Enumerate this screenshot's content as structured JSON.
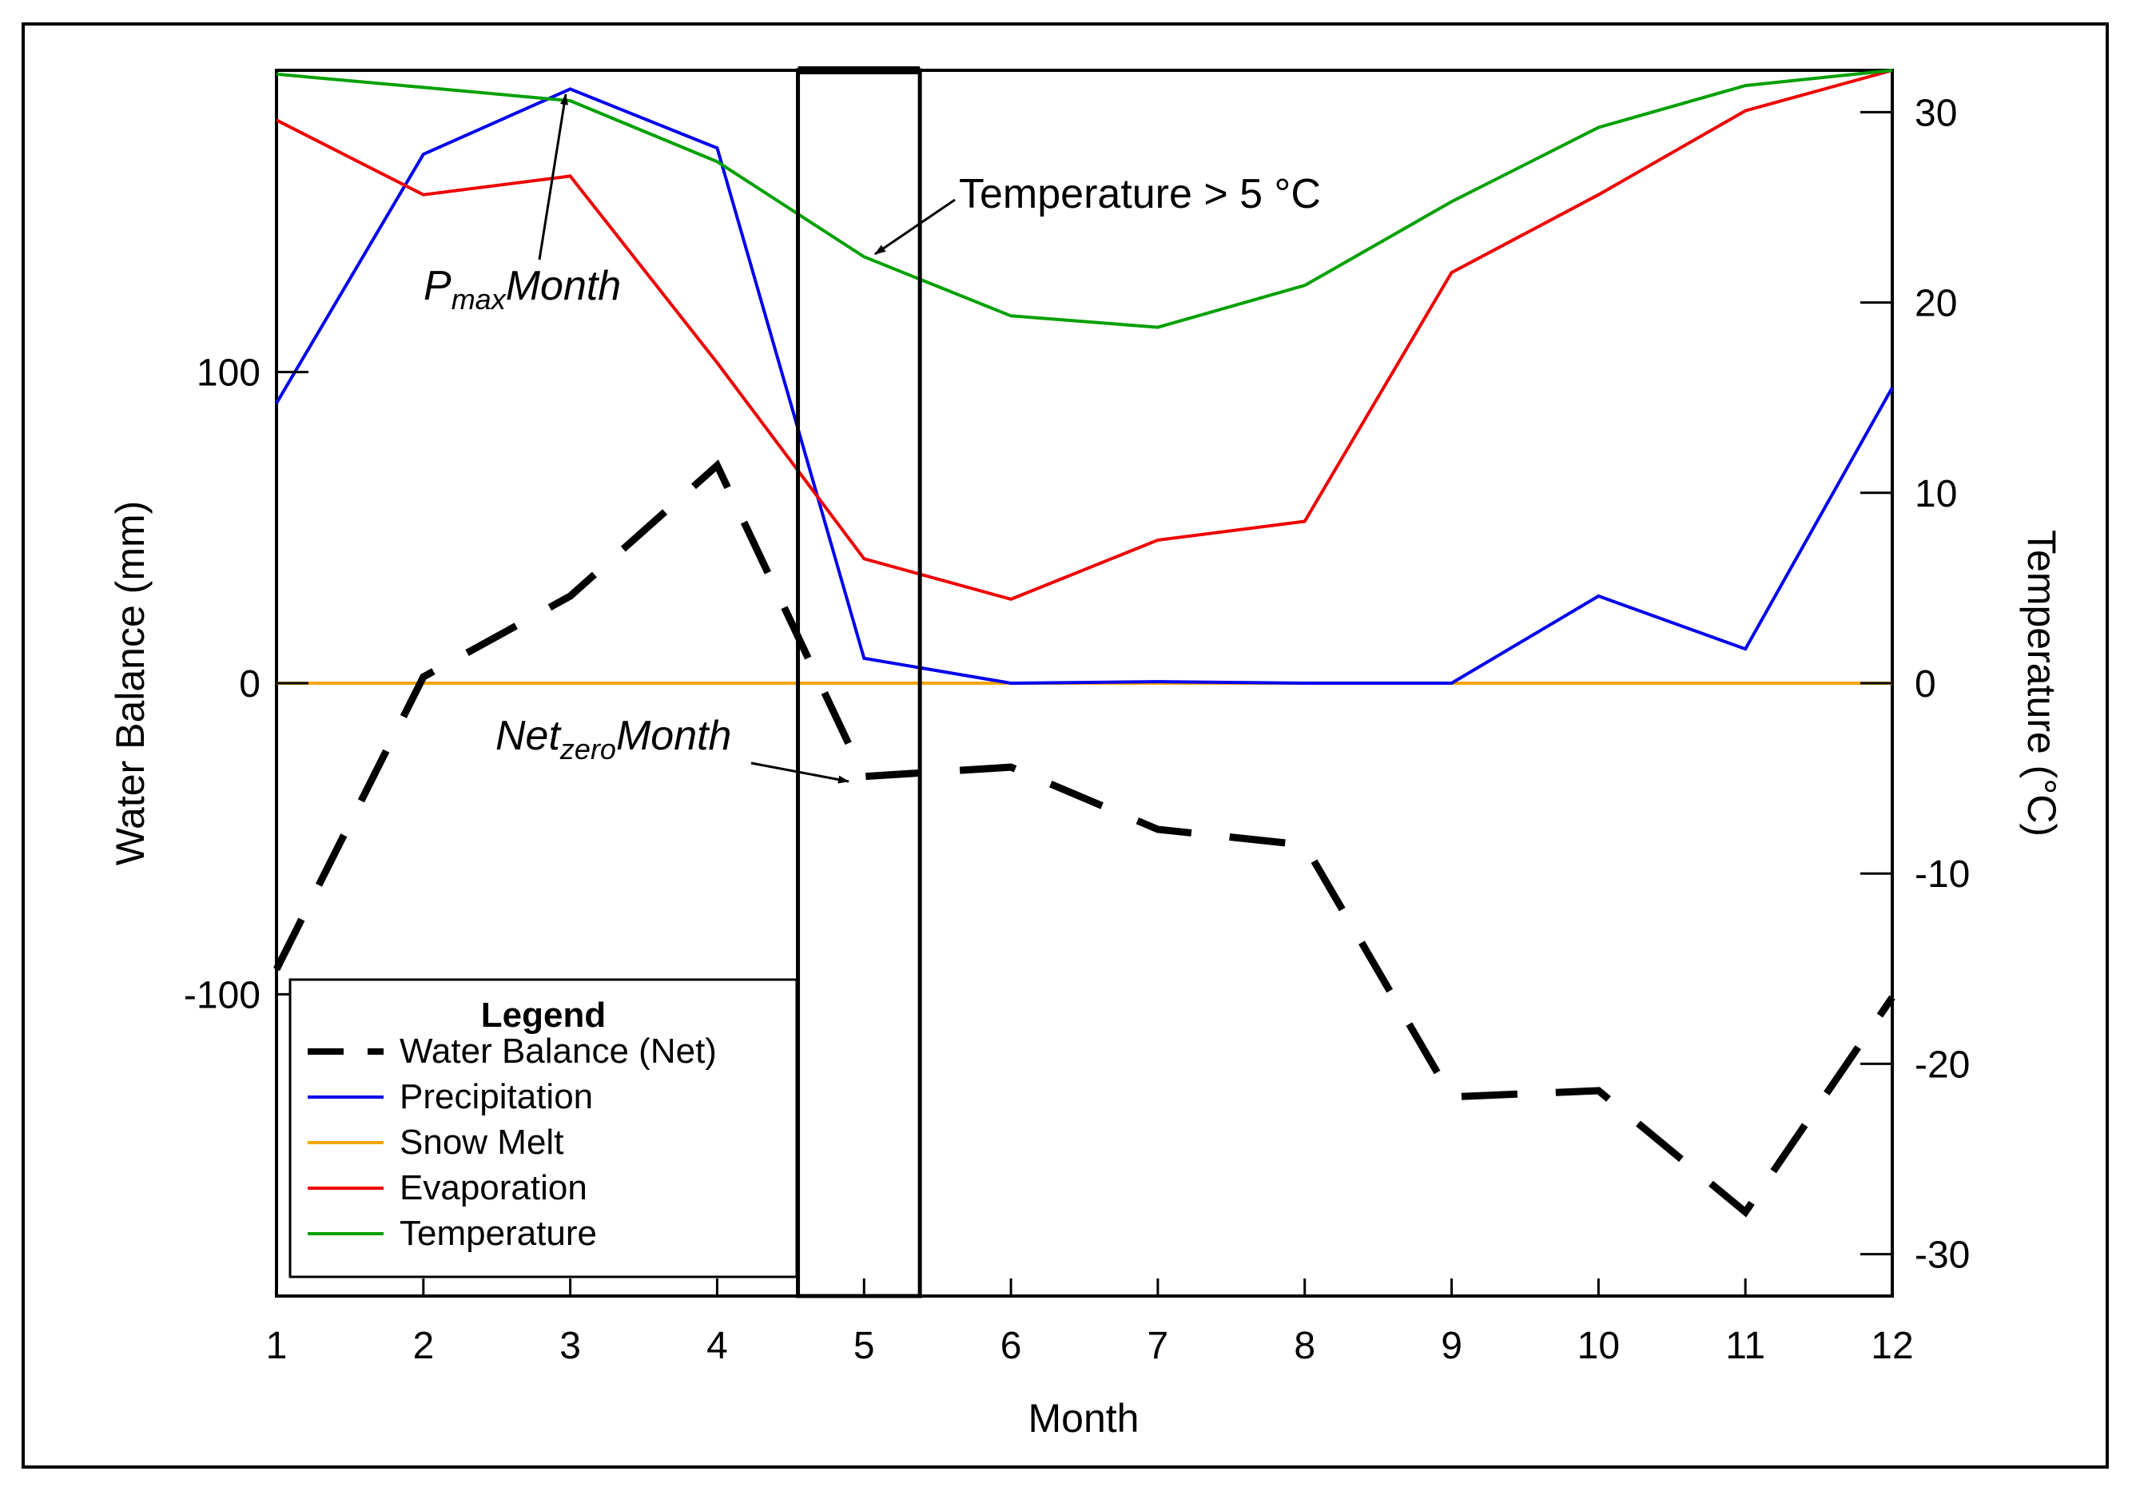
{
  "chart_data": {
    "type": "line",
    "xlabel": "Month",
    "ylabel_left": "Water Balance (mm)",
    "ylabel_right": "Temperature (°C)",
    "x": [
      1,
      2,
      3,
      4,
      5,
      6,
      7,
      8,
      9,
      10,
      11,
      12
    ],
    "xlim": [
      1,
      12
    ],
    "ylim_left": [
      -197,
      197
    ],
    "ylim_right": [
      -32.2,
      32.2
    ],
    "x_ticks": [
      1,
      2,
      3,
      4,
      5,
      6,
      7,
      8,
      9,
      10,
      11,
      12
    ],
    "y_ticks_left": [
      -100,
      0,
      100
    ],
    "y_ticks_right": [
      -30,
      -20,
      -10,
      0,
      10,
      20,
      30
    ],
    "series": [
      {
        "name": "Water Balance (Net)",
        "axis": "left",
        "color": "#000000",
        "style": "dashed",
        "values": [
          -92,
          2,
          28,
          70,
          -30,
          -27,
          -47,
          -52,
          -133,
          -131,
          -170,
          -101
        ]
      },
      {
        "name": "Precipitation",
        "axis": "left",
        "color": "#0000ee",
        "style": "solid",
        "values": [
          90,
          170,
          191,
          172,
          8,
          0,
          0.5,
          0,
          0,
          28,
          11,
          95
        ]
      },
      {
        "name": "Snow Melt",
        "axis": "left",
        "color": "#f5a500",
        "style": "solid",
        "values": [
          0,
          0,
          0,
          0,
          0,
          0,
          0,
          0,
          0,
          0,
          0,
          0
        ]
      },
      {
        "name": "Evaporation",
        "axis": "left",
        "color": "#ee0000",
        "style": "solid",
        "values": [
          181,
          157,
          163,
          103,
          40,
          27,
          46,
          52,
          132,
          157,
          184,
          197
        ]
      },
      {
        "name": "Temperature",
        "axis": "right",
        "color": "#00a000",
        "style": "solid",
        "values": [
          32.0,
          31.3,
          30.6,
          27.4,
          22.4,
          19.3,
          18.7,
          20.9,
          25.3,
          29.2,
          31.4,
          32.2
        ]
      }
    ],
    "highlight_span": {
      "x": [
        4.55,
        5.38
      ],
      "label": "Temperature > 5 °C"
    },
    "annotations": [
      {
        "text": "Temperature > 5 °C",
        "points_to": {
          "x": 5.1,
          "series": "Temperature"
        }
      },
      {
        "text_main": "P",
        "text_sub": "max",
        "text_rest": "Month",
        "points_to": {
          "x": 3,
          "series": "Temperature"
        }
      },
      {
        "text_main": "Net",
        "text_sub": "zero",
        "text_rest": "Month",
        "points_to": {
          "x": 4.95,
          "series": "Water Balance (Net)"
        }
      }
    ],
    "legend": {
      "title": "Legend",
      "location": "lower-left",
      "entries": [
        "Water Balance (Net)",
        "Precipitation",
        "Snow Melt",
        "Evaporation",
        "Temperature"
      ]
    }
  }
}
